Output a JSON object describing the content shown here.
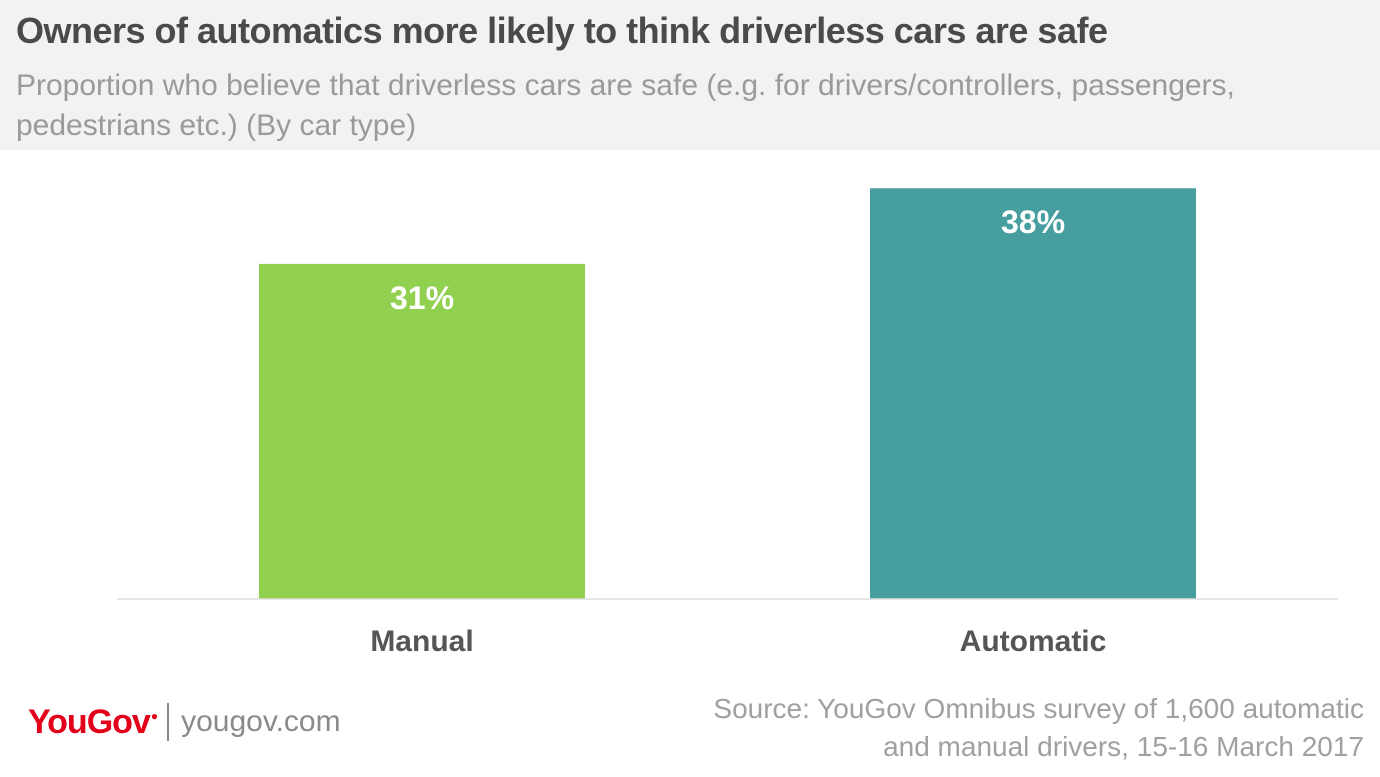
{
  "header": {
    "title": "Owners of automatics more likely to think driverless cars are safe",
    "subtitle": "Proportion who believe that driverless cars are safe (e.g. for drivers/controllers, passengers, pedestrians etc.) (By car type)"
  },
  "chart_data": {
    "type": "bar",
    "categories": [
      "Manual",
      "Automatic"
    ],
    "values": [
      31,
      38
    ],
    "value_labels": [
      "31%",
      "38%"
    ],
    "colors": [
      "#92d050",
      "#469e9f"
    ],
    "ylim": [
      0,
      42
    ],
    "grid": false,
    "legend": "none"
  },
  "footer": {
    "logo": "YouGov",
    "website": "yougov.com",
    "source_line1": "Source: YouGov Omnibus survey of 1,600 automatic",
    "source_line2": "and manual drivers, 15-16 March 2017"
  },
  "colors": {
    "brand_red": "#e3001b",
    "header_bg": "#f2f2f2"
  }
}
